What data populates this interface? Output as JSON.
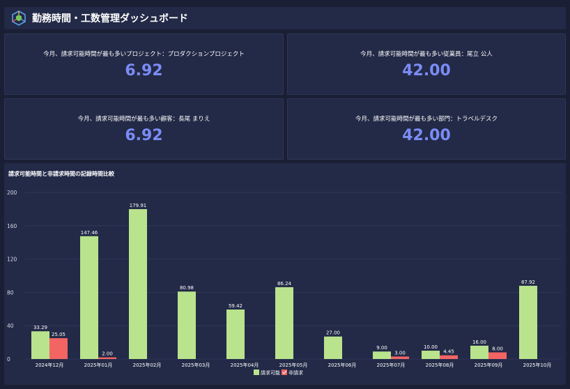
{
  "header": {
    "title": "勤務時間・工数管理ダッシュボード",
    "logo_icon": "hexagon-cube-logo"
  },
  "kpis": [
    {
      "label": "今月、請求可能時間が最も多いプロジェクト：プロダクションプロジェクト",
      "value": "6.92"
    },
    {
      "label": "今月、請求可能時間が最も多い従業員：尾立 公人",
      "value": "42.00"
    },
    {
      "label": "今月、請求可能時間が最も多い顧客：長尾 まりえ",
      "value": "6.92"
    },
    {
      "label": "今月、請求可能時間が最も多い部門：トラベルデスク",
      "value": "42.00"
    }
  ],
  "chart_title": "請求可能時間と非請求時間の記録時間比較",
  "chart_data": {
    "type": "bar",
    "title": "請求可能時間と非請求時間の記録時間比較",
    "categories": [
      "2024年12月",
      "2025年01月",
      "2025年02月",
      "2025年03月",
      "2025年04月",
      "2025年05月",
      "2025年06月",
      "2025年07月",
      "2025年08月",
      "2025年09月",
      "2025年10月"
    ],
    "series": [
      {
        "name": "請求可能",
        "color": "#b9e38d",
        "values": [
          33.29,
          147.46,
          179.91,
          80.98,
          59.42,
          86.24,
          27.0,
          9.0,
          10.0,
          16.0,
          87.92
        ]
      },
      {
        "name": "非請求",
        "color": "#f26563",
        "values": [
          25.05,
          2.0,
          null,
          null,
          null,
          null,
          null,
          3.0,
          4.45,
          8.0,
          null
        ]
      }
    ],
    "labels": [
      [
        "33.29",
        "147.46",
        "179.91",
        "80.98",
        "59.42",
        "86.24",
        "27.00",
        "9.00",
        "10.00",
        "16.00",
        "87.92"
      ],
      [
        "25.05",
        "2.00",
        null,
        null,
        null,
        null,
        null,
        "3.00",
        "4.45",
        "8.00",
        null
      ]
    ],
    "yticks": [
      "0",
      "40",
      "80",
      "120",
      "160",
      "200"
    ],
    "ylim": [
      0,
      200
    ],
    "legend": "bottom-center",
    "grid": true
  }
}
